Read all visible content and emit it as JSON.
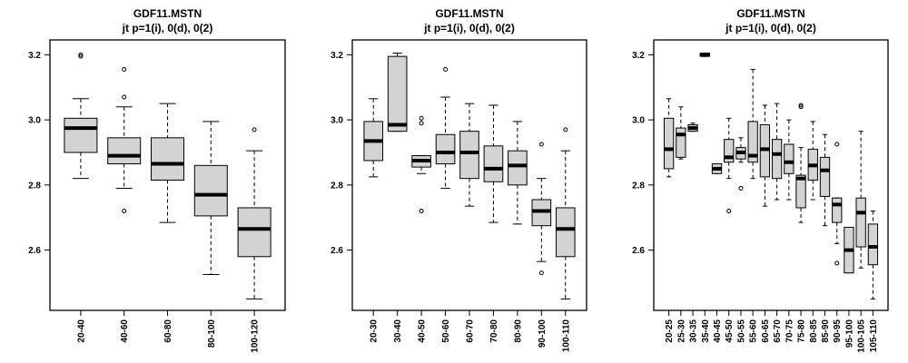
{
  "chart_data": [
    {
      "type": "boxplot",
      "title": "GDF11.MSTN",
      "subtitle": "jt p=1(i), 0(d), 0(2)",
      "ylim": [
        2.44,
        3.24
      ],
      "yticks": [
        2.6,
        2.8,
        3.0,
        3.2
      ],
      "box_fill": "#d3d3d3",
      "categories": [
        "20-40",
        "40-60",
        "60-80",
        "80-100",
        "100-120"
      ],
      "boxes": [
        {
          "whisker_low": 2.82,
          "q1": 2.9,
          "median": 2.975,
          "q3": 3.005,
          "whisker_high": 3.065,
          "outliers": [
            3.195,
            3.2
          ]
        },
        {
          "whisker_low": 2.79,
          "q1": 2.865,
          "median": 2.89,
          "q3": 2.945,
          "whisker_high": 3.04,
          "outliers": [
            3.155,
            3.07,
            2.72
          ]
        },
        {
          "whisker_low": 2.685,
          "q1": 2.815,
          "median": 2.865,
          "q3": 2.945,
          "whisker_high": 3.05,
          "outliers": []
        },
        {
          "whisker_low": 2.525,
          "q1": 2.705,
          "median": 2.77,
          "q3": 2.86,
          "whisker_high": 2.995,
          "outliers": []
        },
        {
          "whisker_low": 2.45,
          "q1": 2.58,
          "median": 2.665,
          "q3": 2.73,
          "whisker_high": 2.905,
          "outliers": [
            2.97
          ]
        }
      ]
    },
    {
      "type": "boxplot",
      "title": "GDF11.MSTN",
      "subtitle": "jt p=1(i), 0(d), 0(2)",
      "ylim": [
        2.44,
        3.24
      ],
      "yticks": [
        2.6,
        2.8,
        3.0,
        3.2
      ],
      "box_fill": "#d3d3d3",
      "categories": [
        "20-30",
        "30-40",
        "40-50",
        "50-60",
        "60-70",
        "70-80",
        "80-90",
        "90-100",
        "100-110"
      ],
      "boxes": [
        {
          "whisker_low": 2.825,
          "q1": 2.875,
          "median": 2.935,
          "q3": 2.995,
          "whisker_high": 3.065,
          "outliers": []
        },
        {
          "whisker_low": 2.965,
          "q1": 2.965,
          "median": 2.985,
          "q3": 3.195,
          "whisker_high": 3.205,
          "outliers": []
        },
        {
          "whisker_low": 2.835,
          "q1": 2.855,
          "median": 2.875,
          "q3": 2.89,
          "whisker_high": 2.89,
          "outliers": [
            3.005,
            2.99,
            2.72
          ]
        },
        {
          "whisker_low": 2.79,
          "q1": 2.865,
          "median": 2.9,
          "q3": 2.955,
          "whisker_high": 3.07,
          "outliers": [
            3.155
          ]
        },
        {
          "whisker_low": 2.735,
          "q1": 2.82,
          "median": 2.9,
          "q3": 2.965,
          "whisker_high": 3.05,
          "outliers": []
        },
        {
          "whisker_low": 2.685,
          "q1": 2.81,
          "median": 2.85,
          "q3": 2.92,
          "whisker_high": 3.045,
          "outliers": []
        },
        {
          "whisker_low": 2.68,
          "q1": 2.8,
          "median": 2.86,
          "q3": 2.905,
          "whisker_high": 2.995,
          "outliers": []
        },
        {
          "whisker_low": 2.565,
          "q1": 2.675,
          "median": 2.72,
          "q3": 2.755,
          "whisker_high": 2.82,
          "outliers": [
            2.925,
            2.53
          ]
        },
        {
          "whisker_low": 2.45,
          "q1": 2.58,
          "median": 2.665,
          "q3": 2.73,
          "whisker_high": 2.905,
          "outliers": [
            2.97
          ]
        }
      ]
    },
    {
      "type": "boxplot",
      "title": "GDF11.MSTN",
      "subtitle": "jt p=1(i), 0(d), 0(2)",
      "ylim": [
        2.44,
        3.24
      ],
      "yticks": [
        2.6,
        2.8,
        3.0,
        3.2
      ],
      "box_fill": "#d3d3d3",
      "categories": [
        "20-25",
        "25-30",
        "30-35",
        "35-40",
        "40-45",
        "45-50",
        "50-55",
        "55-60",
        "60-65",
        "65-70",
        "70-75",
        "75-80",
        "80-85",
        "85-90",
        "90-95",
        "95-100",
        "100-105",
        "105-110"
      ],
      "boxes": [
        {
          "whisker_low": 2.825,
          "q1": 2.85,
          "median": 2.91,
          "q3": 3.005,
          "whisker_high": 3.065,
          "outliers": []
        },
        {
          "whisker_low": 2.88,
          "q1": 2.885,
          "median": 2.955,
          "q3": 2.975,
          "whisker_high": 3.04,
          "outliers": []
        },
        {
          "whisker_low": 2.965,
          "q1": 2.965,
          "median": 2.975,
          "q3": 2.985,
          "whisker_high": 2.99,
          "outliers": []
        },
        {
          "whisker_low": 3.195,
          "q1": 3.195,
          "median": 3.2,
          "q3": 3.205,
          "whisker_high": 3.205,
          "outliers": []
        },
        {
          "whisker_low": 2.835,
          "q1": 2.835,
          "median": 2.85,
          "q3": 2.865,
          "whisker_high": 2.865,
          "outliers": []
        },
        {
          "whisker_low": 2.82,
          "q1": 2.87,
          "median": 2.885,
          "q3": 2.94,
          "whisker_high": 3.005,
          "outliers": [
            2.72
          ]
        },
        {
          "whisker_low": 2.87,
          "q1": 2.88,
          "median": 2.9,
          "q3": 2.915,
          "whisker_high": 2.945,
          "outliers": [
            2.79
          ]
        },
        {
          "whisker_low": 2.82,
          "q1": 2.87,
          "median": 2.89,
          "q3": 2.995,
          "whisker_high": 3.155,
          "outliers": []
        },
        {
          "whisker_low": 2.735,
          "q1": 2.825,
          "median": 2.91,
          "q3": 2.985,
          "whisker_high": 3.045,
          "outliers": []
        },
        {
          "whisker_low": 2.755,
          "q1": 2.82,
          "median": 2.895,
          "q3": 2.94,
          "whisker_high": 3.05,
          "outliers": []
        },
        {
          "whisker_low": 2.755,
          "q1": 2.835,
          "median": 2.87,
          "q3": 2.925,
          "whisker_high": 3.0,
          "outliers": []
        },
        {
          "whisker_low": 2.685,
          "q1": 2.73,
          "median": 2.82,
          "q3": 2.83,
          "whisker_high": 2.915,
          "outliers": [
            3.04,
            3.045
          ]
        },
        {
          "whisker_low": 2.755,
          "q1": 2.815,
          "median": 2.86,
          "q3": 2.91,
          "whisker_high": 2.995,
          "outliers": []
        },
        {
          "whisker_low": 2.675,
          "q1": 2.765,
          "median": 2.845,
          "q3": 2.885,
          "whisker_high": 2.955,
          "outliers": []
        },
        {
          "whisker_low": 2.62,
          "q1": 2.685,
          "median": 2.74,
          "q3": 2.76,
          "whisker_high": 2.76,
          "outliers": [
            2.925,
            2.56
          ]
        },
        {
          "whisker_low": 2.53,
          "q1": 2.53,
          "median": 2.6,
          "q3": 2.67,
          "whisker_high": 2.67,
          "outliers": []
        },
        {
          "whisker_low": 2.545,
          "q1": 2.61,
          "median": 2.715,
          "q3": 2.76,
          "whisker_high": 2.965,
          "outliers": []
        },
        {
          "whisker_low": 2.45,
          "q1": 2.555,
          "median": 2.61,
          "q3": 2.68,
          "whisker_high": 2.72,
          "outliers": []
        }
      ]
    }
  ]
}
